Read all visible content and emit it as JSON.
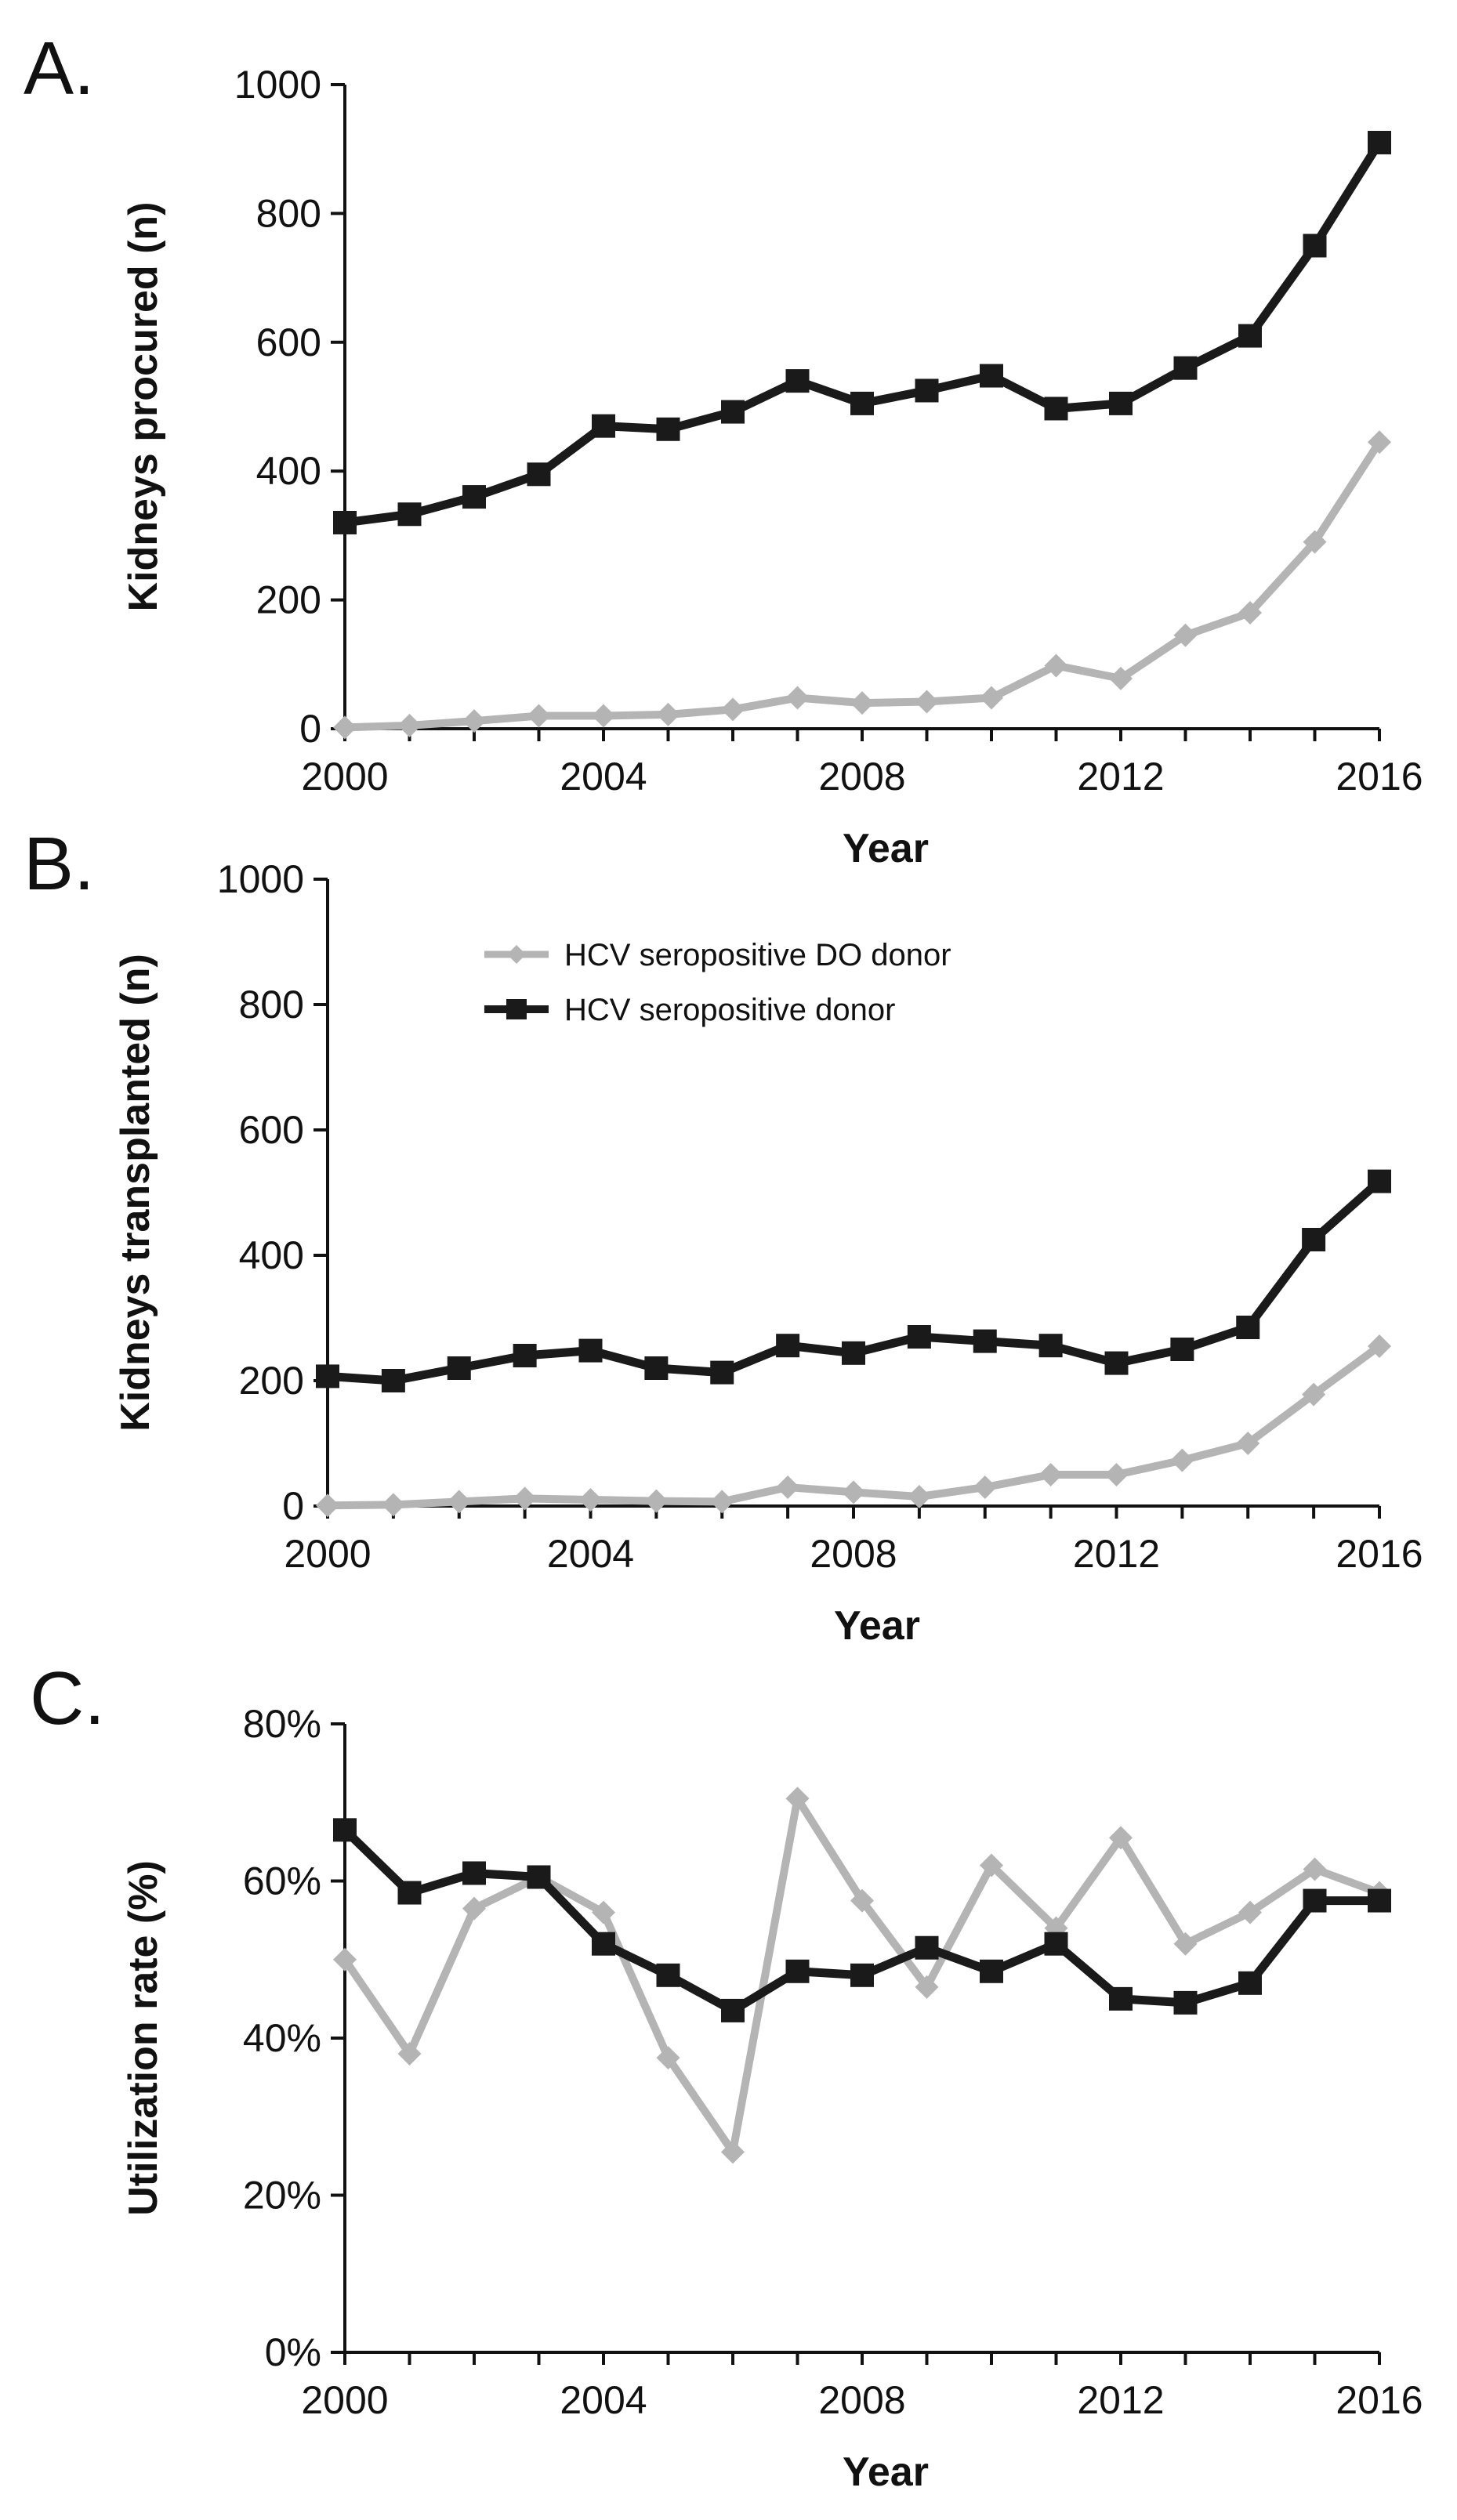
{
  "colors": {
    "hcv_do_donor": "#b4b4b4",
    "hcv_donor": "#1a1a1a",
    "axis": "#111111"
  },
  "legend": {
    "items": [
      "HCV seropositive DO donor",
      "HCV seropositive donor"
    ],
    "placement": "top-left of panel B",
    "icons": [
      "diamond-marker-icon",
      "square-marker-icon"
    ]
  },
  "chart_data": [
    {
      "panel": "A.",
      "type": "line",
      "ylabel": "Kidneys procured (n)",
      "xlabel": "Year",
      "xlim": [
        2000,
        2016
      ],
      "ylim": [
        0,
        1000
      ],
      "xticks": [
        2000,
        2004,
        2008,
        2012,
        2016
      ],
      "yticks": [
        0,
        200,
        400,
        600,
        800,
        1000
      ],
      "ytick_labels": [
        "0",
        "200",
        "400",
        "600",
        "800",
        "1000"
      ],
      "grid": false,
      "x": [
        2000,
        2001,
        2002,
        2003,
        2004,
        2005,
        2006,
        2007,
        2008,
        2009,
        2010,
        2011,
        2012,
        2013,
        2014,
        2015,
        2016
      ],
      "series": [
        {
          "name": "HCV seropositive DO donor",
          "marker": "diamond",
          "values": [
            2,
            5,
            12,
            20,
            20,
            22,
            30,
            48,
            40,
            42,
            48,
            98,
            78,
            145,
            180,
            290,
            445
          ]
        },
        {
          "name": "HCV seropositive donor",
          "marker": "square",
          "values": [
            320,
            333,
            360,
            395,
            470,
            465,
            492,
            540,
            505,
            525,
            548,
            497,
            505,
            560,
            610,
            750,
            910
          ]
        }
      ]
    },
    {
      "panel": "B.",
      "type": "line",
      "ylabel": "Kidneys transplanted (n)",
      "xlabel": "Year",
      "xlim": [
        2000,
        2016
      ],
      "ylim": [
        0,
        1000
      ],
      "xticks": [
        2000,
        2004,
        2008,
        2012,
        2016
      ],
      "yticks": [
        0,
        200,
        400,
        600,
        800,
        1000
      ],
      "ytick_labels": [
        "0",
        "200",
        "400",
        "600",
        "800",
        "1000"
      ],
      "grid": false,
      "x": [
        2000,
        2001,
        2002,
        2003,
        2004,
        2005,
        2006,
        2007,
        2008,
        2009,
        2010,
        2011,
        2012,
        2013,
        2014,
        2015,
        2016
      ],
      "series": [
        {
          "name": "HCV seropositive DO donor",
          "marker": "diamond",
          "values": [
            1,
            2,
            7,
            12,
            10,
            8,
            7,
            30,
            22,
            15,
            30,
            50,
            50,
            73,
            100,
            178,
            255
          ]
        },
        {
          "name": "HCV seropositive donor",
          "marker": "square",
          "values": [
            207,
            200,
            220,
            240,
            248,
            220,
            213,
            256,
            244,
            270,
            263,
            256,
            228,
            250,
            285,
            425,
            518
          ]
        }
      ]
    },
    {
      "panel": "C.",
      "type": "line",
      "ylabel": "Utilization rate (%)",
      "xlabel": "Year",
      "xlim": [
        2000,
        2016
      ],
      "ylim": [
        0,
        80
      ],
      "xticks": [
        2000,
        2004,
        2008,
        2012,
        2016
      ],
      "yticks": [
        0,
        20,
        40,
        60,
        80
      ],
      "ytick_labels": [
        "0%",
        "20%",
        "40%",
        "60%",
        "80%"
      ],
      "grid": false,
      "x": [
        2000,
        2001,
        2002,
        2003,
        2004,
        2005,
        2006,
        2007,
        2008,
        2009,
        2010,
        2011,
        2012,
        2013,
        2014,
        2015,
        2016
      ],
      "series": [
        {
          "name": "HCV seropositive DO donor",
          "marker": "diamond",
          "values": [
            50,
            38,
            56.5,
            60.5,
            56,
            37.5,
            25.5,
            70.5,
            57.5,
            46.5,
            62,
            54,
            65.5,
            52,
            56,
            61.5,
            58.5
          ]
        },
        {
          "name": "HCV seropositive donor",
          "marker": "square",
          "values": [
            66.5,
            58.5,
            61,
            60.5,
            52,
            48,
            43.5,
            48.5,
            48,
            51.5,
            48.5,
            52,
            45,
            44.5,
            47,
            57.5,
            57.5
          ]
        }
      ]
    }
  ]
}
